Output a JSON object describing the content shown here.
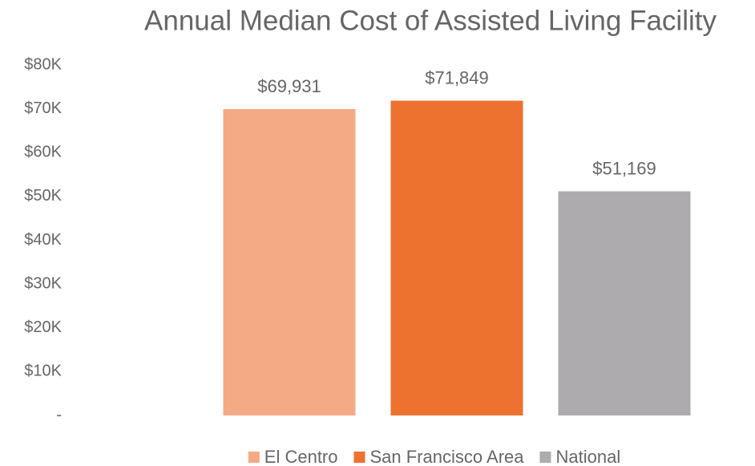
{
  "chart_data": {
    "type": "bar",
    "title": "Annual Median Cost of Assisted Living Facility",
    "categories": [
      null
    ],
    "series": [
      {
        "name": "El Centro",
        "color": "#f4aa85",
        "values": [
          69931
        ],
        "value_labels": [
          "$69,931"
        ]
      },
      {
        "name": "San Francisco Area",
        "color": "#ed7230",
        "values": [
          71849
        ],
        "value_labels": [
          "$71,849"
        ]
      },
      {
        "name": "National",
        "color": "#adabad",
        "values": [
          51169
        ],
        "value_labels": [
          "$51,169"
        ]
      }
    ],
    "ylim": [
      0,
      80000
    ],
    "yticks": [
      {
        "value": 0,
        "label": "-"
      },
      {
        "value": 10000,
        "label": "$10K"
      },
      {
        "value": 20000,
        "label": "$20K"
      },
      {
        "value": 30000,
        "label": "$30K"
      },
      {
        "value": 40000,
        "label": "$40K"
      },
      {
        "value": 50000,
        "label": "$50K"
      },
      {
        "value": 60000,
        "label": "$60K"
      },
      {
        "value": 70000,
        "label": "$70K"
      },
      {
        "value": 80000,
        "label": "$80K"
      }
    ],
    "grid": false,
    "legend": "bottom"
  }
}
